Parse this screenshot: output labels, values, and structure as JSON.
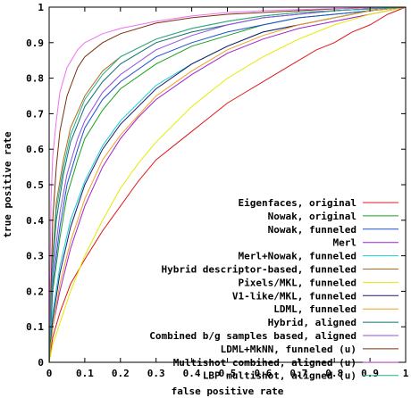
{
  "chart_data": {
    "type": "line",
    "title": "",
    "xlabel": "false positive rate",
    "ylabel": "true positive rate",
    "xlim": [
      0,
      1
    ],
    "ylim": [
      0,
      1
    ],
    "xticks": [
      "0",
      "0.1",
      "0.2",
      "0.3",
      "0.4",
      "0.5",
      "0.6",
      "0.7",
      "0.8",
      "0.9",
      "1"
    ],
    "yticks": [
      "0",
      "0.1",
      "0.2",
      "0.3",
      "0.4",
      "0.5",
      "0.6",
      "0.7",
      "0.8",
      "0.9",
      "1"
    ],
    "grid": false,
    "legend_position": "bottom-right",
    "series": [
      {
        "name": "Eigenfaces, original",
        "color": "#e0191b",
        "points": [
          [
            0,
            0
          ],
          [
            0.01,
            0.07
          ],
          [
            0.03,
            0.14
          ],
          [
            0.06,
            0.22
          ],
          [
            0.1,
            0.29
          ],
          [
            0.15,
            0.37
          ],
          [
            0.2,
            0.44
          ],
          [
            0.25,
            0.51
          ],
          [
            0.3,
            0.57
          ],
          [
            0.35,
            0.61
          ],
          [
            0.4,
            0.65
          ],
          [
            0.45,
            0.69
          ],
          [
            0.5,
            0.73
          ],
          [
            0.55,
            0.76
          ],
          [
            0.6,
            0.79
          ],
          [
            0.65,
            0.82
          ],
          [
            0.7,
            0.85
          ],
          [
            0.75,
            0.88
          ],
          [
            0.8,
            0.9
          ],
          [
            0.85,
            0.93
          ],
          [
            0.9,
            0.95
          ],
          [
            0.95,
            0.98
          ],
          [
            1,
            1
          ]
        ]
      },
      {
        "name": "Nowak, original",
        "color": "#19a019",
        "points": [
          [
            0,
            0
          ],
          [
            0.01,
            0.2
          ],
          [
            0.03,
            0.35
          ],
          [
            0.05,
            0.47
          ],
          [
            0.08,
            0.57
          ],
          [
            0.1,
            0.63
          ],
          [
            0.15,
            0.71
          ],
          [
            0.2,
            0.77
          ],
          [
            0.3,
            0.84
          ],
          [
            0.4,
            0.89
          ],
          [
            0.5,
            0.92
          ],
          [
            0.6,
            0.95
          ],
          [
            0.7,
            0.97
          ],
          [
            0.8,
            0.98
          ],
          [
            0.9,
            0.99
          ],
          [
            1,
            1
          ]
        ]
      },
      {
        "name": "Nowak, funneled",
        "color": "#1f4fd6",
        "points": [
          [
            0,
            0
          ],
          [
            0.01,
            0.22
          ],
          [
            0.03,
            0.38
          ],
          [
            0.05,
            0.5
          ],
          [
            0.08,
            0.6
          ],
          [
            0.1,
            0.66
          ],
          [
            0.15,
            0.74
          ],
          [
            0.2,
            0.79
          ],
          [
            0.3,
            0.86
          ],
          [
            0.4,
            0.9
          ],
          [
            0.5,
            0.93
          ],
          [
            0.6,
            0.95
          ],
          [
            0.7,
            0.97
          ],
          [
            0.8,
            0.98
          ],
          [
            0.9,
            0.99
          ],
          [
            1,
            1
          ]
        ]
      },
      {
        "name": "Merl",
        "color": "#a020d0",
        "points": [
          [
            0,
            0
          ],
          [
            0.01,
            0.1
          ],
          [
            0.03,
            0.2
          ],
          [
            0.06,
            0.32
          ],
          [
            0.1,
            0.44
          ],
          [
            0.15,
            0.55
          ],
          [
            0.2,
            0.63
          ],
          [
            0.25,
            0.69
          ],
          [
            0.3,
            0.74
          ],
          [
            0.4,
            0.81
          ],
          [
            0.5,
            0.87
          ],
          [
            0.6,
            0.91
          ],
          [
            0.7,
            0.94
          ],
          [
            0.8,
            0.96
          ],
          [
            0.9,
            0.98
          ],
          [
            1,
            1
          ]
        ]
      },
      {
        "name": "Merl+Nowak, funneled",
        "color": "#1ad0d0",
        "points": [
          [
            0,
            0
          ],
          [
            0.01,
            0.14
          ],
          [
            0.03,
            0.27
          ],
          [
            0.06,
            0.4
          ],
          [
            0.1,
            0.51
          ],
          [
            0.15,
            0.61
          ],
          [
            0.2,
            0.68
          ],
          [
            0.3,
            0.78
          ],
          [
            0.4,
            0.84
          ],
          [
            0.5,
            0.89
          ],
          [
            0.6,
            0.93
          ],
          [
            0.7,
            0.95
          ],
          [
            0.8,
            0.97
          ],
          [
            0.9,
            0.99
          ],
          [
            1,
            1
          ]
        ]
      },
      {
        "name": "Hybrid descriptor-based, funneled",
        "color": "#b86a1a",
        "points": [
          [
            0,
            0
          ],
          [
            0.01,
            0.3
          ],
          [
            0.02,
            0.45
          ],
          [
            0.04,
            0.57
          ],
          [
            0.06,
            0.66
          ],
          [
            0.1,
            0.75
          ],
          [
            0.15,
            0.82
          ],
          [
            0.2,
            0.86
          ],
          [
            0.3,
            0.91
          ],
          [
            0.4,
            0.94
          ],
          [
            0.5,
            0.96
          ],
          [
            0.6,
            0.975
          ],
          [
            0.7,
            0.985
          ],
          [
            0.8,
            0.99
          ],
          [
            0.9,
            0.995
          ],
          [
            1,
            1
          ]
        ]
      },
      {
        "name": "Pixels/MKL, funneled",
        "color": "#e8e800",
        "points": [
          [
            0,
            0
          ],
          [
            0.01,
            0.05
          ],
          [
            0.03,
            0.11
          ],
          [
            0.06,
            0.2
          ],
          [
            0.1,
            0.3
          ],
          [
            0.15,
            0.4
          ],
          [
            0.2,
            0.49
          ],
          [
            0.25,
            0.56
          ],
          [
            0.3,
            0.62
          ],
          [
            0.4,
            0.72
          ],
          [
            0.5,
            0.8
          ],
          [
            0.6,
            0.86
          ],
          [
            0.7,
            0.91
          ],
          [
            0.8,
            0.95
          ],
          [
            0.9,
            0.98
          ],
          [
            1,
            1
          ]
        ]
      },
      {
        "name": "V1-like/MKL, funneled",
        "color": "#1a1a70",
        "points": [
          [
            0,
            0
          ],
          [
            0.01,
            0.12
          ],
          [
            0.03,
            0.25
          ],
          [
            0.06,
            0.38
          ],
          [
            0.1,
            0.5
          ],
          [
            0.15,
            0.6
          ],
          [
            0.2,
            0.67
          ],
          [
            0.3,
            0.77
          ],
          [
            0.4,
            0.84
          ],
          [
            0.5,
            0.89
          ],
          [
            0.6,
            0.93
          ],
          [
            0.7,
            0.95
          ],
          [
            0.8,
            0.97
          ],
          [
            0.9,
            0.99
          ],
          [
            1,
            1
          ]
        ]
      },
      {
        "name": "LDML, funneled",
        "color": "#f0a020",
        "points": [
          [
            0,
            0
          ],
          [
            0.01,
            0.1
          ],
          [
            0.03,
            0.22
          ],
          [
            0.06,
            0.34
          ],
          [
            0.1,
            0.46
          ],
          [
            0.15,
            0.57
          ],
          [
            0.2,
            0.64
          ],
          [
            0.3,
            0.75
          ],
          [
            0.4,
            0.82
          ],
          [
            0.5,
            0.88
          ],
          [
            0.6,
            0.92
          ],
          [
            0.7,
            0.95
          ],
          [
            0.8,
            0.97
          ],
          [
            0.9,
            0.99
          ],
          [
            1,
            1
          ]
        ]
      },
      {
        "name": "Hybrid, aligned",
        "color": "#107070",
        "points": [
          [
            0,
            0
          ],
          [
            0.01,
            0.27
          ],
          [
            0.02,
            0.4
          ],
          [
            0.04,
            0.53
          ],
          [
            0.06,
            0.62
          ],
          [
            0.1,
            0.72
          ],
          [
            0.15,
            0.79
          ],
          [
            0.2,
            0.84
          ],
          [
            0.3,
            0.9
          ],
          [
            0.4,
            0.93
          ],
          [
            0.5,
            0.95
          ],
          [
            0.6,
            0.97
          ],
          [
            0.7,
            0.98
          ],
          [
            0.8,
            0.99
          ],
          [
            0.9,
            0.995
          ],
          [
            1,
            1
          ]
        ]
      },
      {
        "name": "Combined b/g samples based, aligned",
        "color": "#9050e0",
        "points": [
          [
            0,
            0
          ],
          [
            0.01,
            0.25
          ],
          [
            0.03,
            0.42
          ],
          [
            0.05,
            0.53
          ],
          [
            0.08,
            0.63
          ],
          [
            0.1,
            0.68
          ],
          [
            0.15,
            0.76
          ],
          [
            0.2,
            0.81
          ],
          [
            0.3,
            0.88
          ],
          [
            0.4,
            0.92
          ],
          [
            0.5,
            0.95
          ],
          [
            0.6,
            0.97
          ],
          [
            0.7,
            0.98
          ],
          [
            0.8,
            0.99
          ],
          [
            0.9,
            0.995
          ],
          [
            1,
            1
          ]
        ]
      },
      {
        "name": "LDML+MkNN, funneled (u)",
        "color": "#7a3010",
        "points": [
          [
            0,
            0
          ],
          [
            0.01,
            0.4
          ],
          [
            0.02,
            0.55
          ],
          [
            0.03,
            0.65
          ],
          [
            0.05,
            0.75
          ],
          [
            0.08,
            0.83
          ],
          [
            0.1,
            0.86
          ],
          [
            0.15,
            0.9
          ],
          [
            0.2,
            0.925
          ],
          [
            0.3,
            0.955
          ],
          [
            0.4,
            0.97
          ],
          [
            0.5,
            0.98
          ],
          [
            0.6,
            0.985
          ],
          [
            0.7,
            0.99
          ],
          [
            0.8,
            0.995
          ],
          [
            0.9,
            0.998
          ],
          [
            1,
            1
          ]
        ]
      },
      {
        "name": "Multishot combined, aligned (u)",
        "color": "#f070f0",
        "points": [
          [
            0,
            0
          ],
          [
            0.005,
            0.45
          ],
          [
            0.01,
            0.58
          ],
          [
            0.02,
            0.68
          ],
          [
            0.03,
            0.76
          ],
          [
            0.05,
            0.83
          ],
          [
            0.08,
            0.88
          ],
          [
            0.1,
            0.9
          ],
          [
            0.15,
            0.925
          ],
          [
            0.2,
            0.94
          ],
          [
            0.3,
            0.96
          ],
          [
            0.4,
            0.975
          ],
          [
            0.5,
            0.985
          ],
          [
            0.6,
            0.99
          ],
          [
            0.7,
            0.993
          ],
          [
            0.8,
            0.996
          ],
          [
            0.9,
            0.998
          ],
          [
            1,
            1
          ]
        ]
      },
      {
        "name": "LBP multishot, aligned (u)",
        "color": "#20b090",
        "points": [
          [
            0,
            0
          ],
          [
            0.01,
            0.28
          ],
          [
            0.02,
            0.43
          ],
          [
            0.04,
            0.55
          ],
          [
            0.06,
            0.64
          ],
          [
            0.1,
            0.74
          ],
          [
            0.15,
            0.81
          ],
          [
            0.2,
            0.86
          ],
          [
            0.3,
            0.91
          ],
          [
            0.4,
            0.94
          ],
          [
            0.5,
            0.96
          ],
          [
            0.6,
            0.975
          ],
          [
            0.7,
            0.985
          ],
          [
            0.8,
            0.99
          ],
          [
            0.9,
            0.995
          ],
          [
            1,
            1
          ]
        ]
      }
    ]
  }
}
